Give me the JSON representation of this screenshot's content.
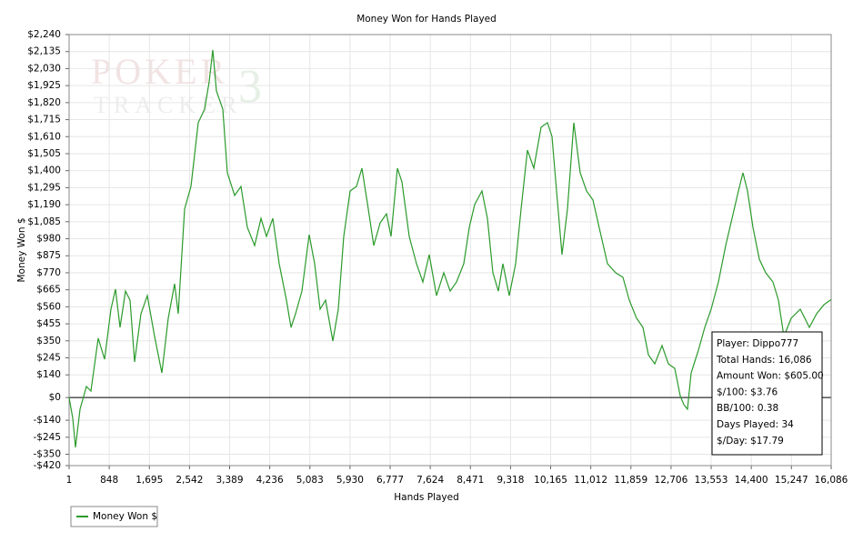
{
  "chart_data": {
    "type": "line",
    "title": "Money Won for Hands Played",
    "x_label": "Hands Played",
    "y_label": "Money Won $",
    "watermark": [
      "POKER",
      "TRACKER",
      "3"
    ],
    "xlim": [
      1,
      16086
    ],
    "ylim": [
      -420,
      2240
    ],
    "grid": true,
    "legend": "bottom-left",
    "xticks": [
      1,
      {
        "value": 848,
        "label": "848"
      },
      {
        "value": 1695,
        "label": "1,695"
      },
      {
        "value": 2542,
        "label": "2,542"
      },
      {
        "value": 3389,
        "label": "3,389"
      },
      {
        "value": 4236,
        "label": "4,236"
      },
      {
        "value": 5083,
        "label": "5,083"
      },
      {
        "value": 5930,
        "label": "5,930"
      },
      {
        "value": 6777,
        "label": "6,777"
      },
      {
        "value": 7624,
        "label": "7,624"
      },
      {
        "value": 8471,
        "label": "8,471"
      },
      {
        "value": 9318,
        "label": "9,318"
      },
      {
        "value": 10165,
        "label": "10,165"
      },
      {
        "value": 11012,
        "label": "11,012"
      },
      {
        "value": 11859,
        "label": "11,859"
      },
      {
        "value": 12706,
        "label": "12,706"
      },
      {
        "value": 13553,
        "label": "13,553"
      },
      {
        "value": 14400,
        "label": "14,400"
      },
      {
        "value": 15247,
        "label": "15,247"
      },
      {
        "value": 16086,
        "label": "16,086"
      }
    ],
    "yticks": [
      {
        "value": 2240,
        "label": "$2,240"
      },
      {
        "value": 2135,
        "label": "$2,135"
      },
      {
        "value": 2030,
        "label": "$2,030"
      },
      {
        "value": 1925,
        "label": "$1,925"
      },
      {
        "value": 1820,
        "label": "$1,820"
      },
      {
        "value": 1715,
        "label": "$1,715"
      },
      {
        "value": 1610,
        "label": "$1,610"
      },
      {
        "value": 1505,
        "label": "$1,505"
      },
      {
        "value": 1400,
        "label": "$1,400"
      },
      {
        "value": 1295,
        "label": "$1,295"
      },
      {
        "value": 1190,
        "label": "$1,190"
      },
      {
        "value": 1085,
        "label": "$1,085"
      },
      {
        "value": 980,
        "label": "$980"
      },
      {
        "value": 875,
        "label": "$875"
      },
      {
        "value": 770,
        "label": "$770"
      },
      {
        "value": 665,
        "label": "$665"
      },
      {
        "value": 560,
        "label": "$560"
      },
      {
        "value": 455,
        "label": "$455"
      },
      {
        "value": 350,
        "label": "$350"
      },
      {
        "value": 245,
        "label": "$245"
      },
      {
        "value": 140,
        "label": "$140"
      },
      {
        "value": 0,
        "label": "$0"
      },
      {
        "value": -140,
        "label": "-$140"
      },
      {
        "value": -245,
        "label": "-$245"
      },
      {
        "value": -350,
        "label": "-$350"
      },
      {
        "value": -420,
        "label": "-$420"
      }
    ],
    "x": [
      1,
      78,
      135,
      231,
      366,
      462,
      615,
      750,
      884,
      980,
      1076,
      1191,
      1287,
      1383,
      1517,
      1652,
      1805,
      1959,
      2093,
      2228,
      2304,
      2439,
      2573,
      2727,
      2861,
      2957,
      3034,
      3111,
      3245,
      3341,
      3495,
      3629,
      3763,
      3917,
      4051,
      4166,
      4301,
      4435,
      4589,
      4685,
      4781,
      4915,
      5068,
      5184,
      5299,
      5414,
      5568,
      5683,
      5798,
      5932,
      6067,
      6182,
      6316,
      6432,
      6566,
      6700,
      6796,
      6931,
      7027,
      7180,
      7334,
      7468,
      7602,
      7756,
      7910,
      8044,
      8178,
      8332,
      8447,
      8562,
      8716,
      8831,
      8946,
      9061,
      9157,
      9291,
      9426,
      9541,
      9675,
      9810,
      9963,
      10098,
      10194,
      10289,
      10405,
      10520,
      10654,
      10788,
      10923,
      11057,
      11211,
      11365,
      11537,
      11691,
      11825,
      11979,
      12113,
      12228,
      12363,
      12516,
      12651,
      12785,
      12900,
      12977,
      13054,
      13130,
      13284,
      13418,
      13553,
      13706,
      13860,
      13994,
      14129,
      14225,
      14321,
      14436,
      14570,
      14704,
      14858,
      14973,
      15088,
      15242,
      15434,
      15626,
      15779,
      15933,
      16086
    ],
    "series": [
      {
        "name": "Money Won $",
        "color": "#2b9a2b",
        "values": [
          0,
          -128,
          -307,
          -72,
          68,
          40,
          366,
          236,
          545,
          669,
          433,
          657,
          601,
          220,
          517,
          629,
          377,
          152,
          489,
          702,
          517,
          1163,
          1303,
          1696,
          1780,
          1948,
          2145,
          1892,
          1780,
          1387,
          1247,
          1303,
          1050,
          938,
          1106,
          994,
          1106,
          826,
          601,
          433,
          517,
          657,
          1005,
          826,
          545,
          601,
          349,
          545,
          994,
          1275,
          1303,
          1415,
          1163,
          938,
          1078,
          1134,
          994,
          1415,
          1331,
          994,
          826,
          713,
          882,
          629,
          770,
          657,
          713,
          826,
          1050,
          1191,
          1275,
          1106,
          770,
          657,
          826,
          629,
          826,
          1163,
          1527,
          1415,
          1668,
          1696,
          1611,
          1275,
          882,
          1163,
          1696,
          1387,
          1275,
          1219,
          1022,
          826,
          770,
          742,
          601,
          489,
          433,
          264,
          208,
          321,
          208,
          180,
          11,
          -44,
          -72,
          152,
          292,
          433,
          545,
          713,
          938,
          1106,
          1275,
          1387,
          1275,
          1050,
          854,
          770,
          713,
          601,
          377,
          489,
          545,
          433,
          517,
          573,
          605
        ]
      }
    ],
    "tooltip": [
      "Player: Dippo777",
      "Total Hands: 16,086",
      "Amount Won: $605.00",
      "$/100: $3.76",
      "BB/100: 0.38",
      "Days Played: 34",
      "$/Day: $17.79"
    ]
  }
}
